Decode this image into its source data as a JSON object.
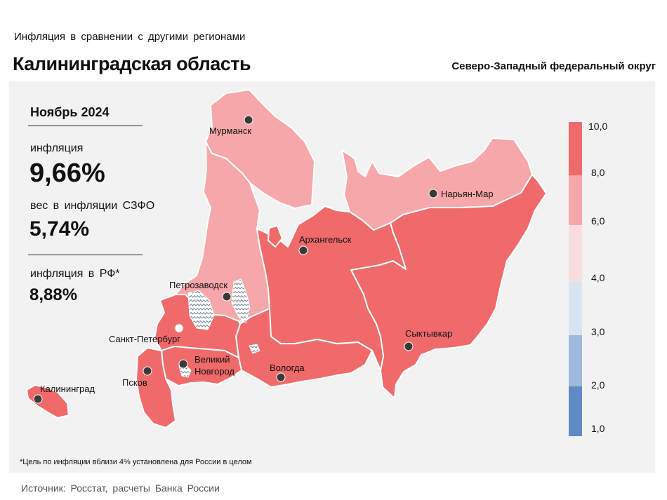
{
  "header": {
    "subtitle": "Инфляция  в сравнении  с другими  регионами",
    "title": "Калининградская область",
    "district": "Северо-Западный федеральный округ"
  },
  "stats": {
    "period": "Ноябрь 2024",
    "inflation_label": "инфляция",
    "inflation_value": "9,66%",
    "weight_label": "вес в инфляции  СЗФО",
    "weight_value": "5,74%",
    "russia_label": "инфляция  в РФ*",
    "russia_value": "8,88%"
  },
  "colors": {
    "panel": "#f2f2f2",
    "dark_red": "#f06a6b",
    "light_red": "#f6a7a9",
    "pale_pink": "#fbdde0",
    "pale_blue": "#d9e4f3",
    "light_blue": "#9fb9dc",
    "blue": "#5f8ac6",
    "city_dot": "#3a3a3a"
  },
  "legend": {
    "bins": [
      {
        "from": 8.0,
        "to": 10.0,
        "color": "#f06a6b"
      },
      {
        "from": 6.0,
        "to": 8.0,
        "color": "#f6a7a9"
      },
      {
        "from": 4.0,
        "to": 6.0,
        "color": "#fbdde0"
      },
      {
        "from": 3.0,
        "to": 4.0,
        "color": "#d9e4f3"
      },
      {
        "from": 2.0,
        "to": 3.0,
        "color": "#9fb9dc"
      },
      {
        "from": 1.0,
        "to": 2.0,
        "color": "#5f8ac6"
      }
    ],
    "labels": [
      "10,0",
      "8,0",
      "6,0",
      "4,0",
      "3,0",
      "2,0",
      "1,0"
    ]
  },
  "map": {
    "regions": [
      {
        "name": "Мурманская область",
        "bin": "6,0–8,0"
      },
      {
        "name": "Республика Карелия",
        "bin": "6,0–8,0"
      },
      {
        "name": "Ненецкий АО",
        "bin": "6,0–8,0"
      },
      {
        "name": "Архангельская область",
        "bin": "8,0–10,0"
      },
      {
        "name": "Республика Коми",
        "bin": "8,0–10,0"
      },
      {
        "name": "Ленинградская область",
        "bin": "8,0–10,0"
      },
      {
        "name": "Вологодская область",
        "bin": "8,0–10,0"
      },
      {
        "name": "Новгородская область",
        "bin": "8,0–10,0"
      },
      {
        "name": "Псковская область",
        "bin": "8,0–10,0"
      },
      {
        "name": "Калининградская область",
        "bin": "8,0–10,0"
      }
    ],
    "cities": {
      "murmansk": "Мурманск",
      "naryan_mar": "Нарьян-Мар",
      "arkhangelsk": "Архангельск",
      "petrozavodsk": "Петрозаводск",
      "syktyvkar": "Сыктывкар",
      "spb": "Санкт-Петербург",
      "novgorod_1": "Великий",
      "novgorod_2": "Новгород",
      "vologda": "Вологда",
      "pskov": "Псков",
      "kaliningrad": "Калининград"
    }
  },
  "footnote": "*Цель по инфляции вблизи 4% установлена для России в целом",
  "source": "Источник:  Росстат,  расчеты Банка  России"
}
